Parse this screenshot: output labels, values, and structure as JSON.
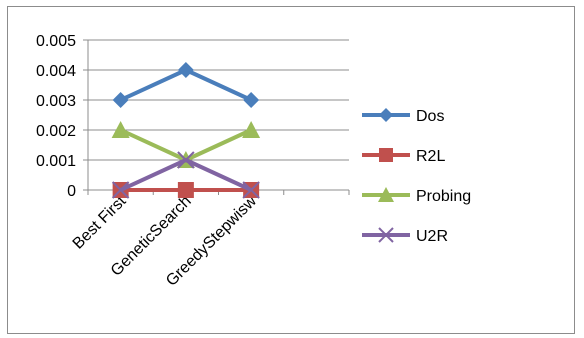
{
  "chart_data": {
    "type": "line",
    "categories": [
      "Best First",
      "GeneticSearch",
      "GreedyStepwisw"
    ],
    "series": [
      {
        "name": "Dos",
        "values": [
          0.003,
          0.004,
          0.003
        ],
        "color": "#4a7ebb",
        "marker": "diamond"
      },
      {
        "name": "R2L",
        "values": [
          0,
          0,
          0
        ],
        "color": "#c0504d",
        "marker": "square"
      },
      {
        "name": "Probing",
        "values": [
          0.002,
          0.001,
          0.002
        ],
        "color": "#9bbb59",
        "marker": "triangle"
      },
      {
        "name": "U2R",
        "values": [
          0,
          0.001,
          0
        ],
        "color": "#8064a2",
        "marker": "x"
      }
    ],
    "ylim": [
      0,
      0.005
    ],
    "yticks": [
      "0",
      "0.001",
      "0.002",
      "0.003",
      "0.004",
      "0.005"
    ],
    "grid": true,
    "legend": "right"
  }
}
